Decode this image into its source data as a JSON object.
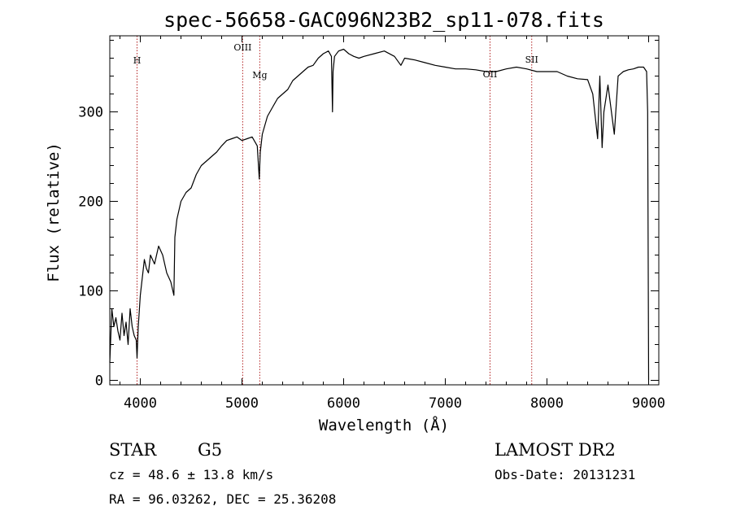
{
  "chart_data": {
    "type": "line",
    "title": "spec-56658-GAC096N23B2_sp11-078.fits",
    "xlabel": "Wavelength (Å)",
    "ylabel": "Flux (relative)",
    "xlim": [
      3700,
      9100
    ],
    "ylim": [
      -5,
      385
    ],
    "x_ticks": [
      4000,
      5000,
      6000,
      7000,
      8000,
      9000
    ],
    "y_ticks": [
      0,
      100,
      200,
      300
    ],
    "grid": false,
    "series": [
      {
        "x": [
          3700,
          3720,
          3740,
          3760,
          3780,
          3800,
          3820,
          3840,
          3860,
          3880,
          3900,
          3920,
          3940,
          3960,
          3968,
          3980,
          4000,
          4020,
          4040,
          4060,
          4080,
          4100,
          4140,
          4180,
          4220,
          4260,
          4300,
          4330,
          4340,
          4360,
          4400,
          4450,
          4500,
          4550,
          4600,
          4650,
          4700,
          4750,
          4800,
          4850,
          4900,
          4950,
          5000,
          5050,
          5100,
          5150,
          5170,
          5180,
          5200,
          5250,
          5300,
          5350,
          5400,
          5450,
          5500,
          5550,
          5600,
          5650,
          5700,
          5750,
          5800,
          5850,
          5880,
          5890,
          5896,
          5910,
          5950,
          6000,
          6050,
          6100,
          6150,
          6200,
          6300,
          6400,
          6500,
          6563,
          6600,
          6700,
          6800,
          6900,
          7000,
          7100,
          7200,
          7300,
          7400,
          7500,
          7600,
          7700,
          7800,
          7900,
          8000,
          8100,
          8200,
          8300,
          8400,
          8450,
          8498,
          8520,
          8542,
          8560,
          8600,
          8662,
          8700,
          8750,
          8800,
          8850,
          8900,
          8950,
          8980,
          8990,
          9000
        ],
        "values": [
          20,
          80,
          60,
          70,
          55,
          45,
          75,
          50,
          65,
          40,
          80,
          60,
          50,
          45,
          25,
          60,
          95,
          115,
          135,
          125,
          120,
          140,
          130,
          150,
          140,
          120,
          110,
          95,
          160,
          180,
          200,
          210,
          215,
          230,
          240,
          245,
          250,
          255,
          262,
          268,
          270,
          272,
          268,
          270,
          272,
          262,
          225,
          255,
          275,
          295,
          305,
          315,
          320,
          325,
          335,
          340,
          345,
          350,
          352,
          360,
          365,
          368,
          362,
          300,
          345,
          362,
          368,
          370,
          365,
          362,
          360,
          362,
          365,
          368,
          362,
          352,
          360,
          358,
          355,
          352,
          350,
          348,
          348,
          347,
          345,
          345,
          348,
          350,
          348,
          345,
          345,
          345,
          340,
          337,
          336,
          320,
          270,
          340,
          260,
          300,
          330,
          275,
          340,
          345,
          347,
          348,
          350,
          350,
          345,
          300,
          0
        ]
      }
    ],
    "emission_lines": [
      {
        "name": "H",
        "wavelength": 3968
      },
      {
        "name": "OIII",
        "wavelength": 5007
      },
      {
        "name": "Mg",
        "wavelength": 5175
      },
      {
        "name": "OII",
        "wavelength": 7440
      },
      {
        "name": "SII",
        "wavelength": 7850
      }
    ]
  },
  "info": {
    "class": "STAR",
    "subclass": "G5",
    "survey": "LAMOST DR2",
    "cz": "cz = 48.6 ± 13.8 km/s",
    "obs_date": "Obs-Date: 20131231",
    "coords": "RA =  96.03262, DEC =  25.36208"
  }
}
